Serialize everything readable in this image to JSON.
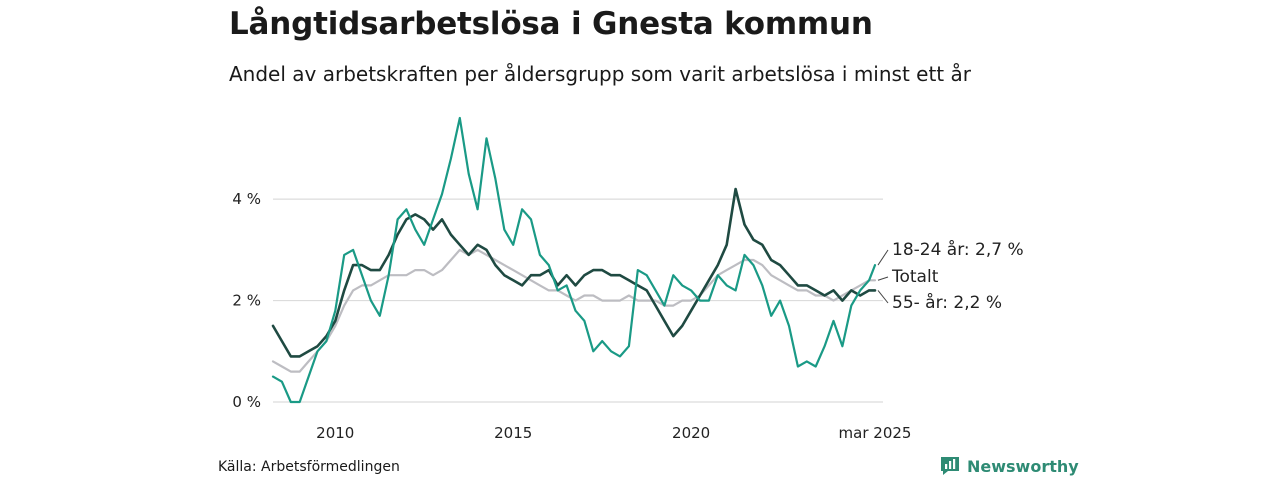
{
  "title": "Långtidsarbetslösa i Gnesta kommun",
  "subtitle": "Andel av arbetskraften per åldersgrupp som varit arbetslösa i minst ett år",
  "source": "Källa: Arbetsförmedlingen",
  "brand": "Newsworthy",
  "colors": {
    "youth": "#1a9a86",
    "senior": "#1f4a42",
    "total": "#bdbdc2",
    "grid": "#dcdcdc",
    "brand": "#2e8b74"
  },
  "chart_data": {
    "type": "line",
    "x_unit": "month",
    "x_range": [
      "2008-04",
      "2025-03"
    ],
    "ylim": [
      0,
      5.6
    ],
    "yticks": [
      {
        "value": 0,
        "label": "0 %"
      },
      {
        "value": 2,
        "label": "2 %"
      },
      {
        "value": 4,
        "label": "4 %"
      }
    ],
    "xticks": [
      {
        "date": "2010-01",
        "label": "2010"
      },
      {
        "date": "2015-01",
        "label": "2015"
      },
      {
        "date": "2020-01",
        "label": "2020"
      },
      {
        "date": "2025-03",
        "label": "mar 2025"
      }
    ],
    "grid": true,
    "legend": "direct-labels-right",
    "series": [
      {
        "key": "total",
        "label": "Totalt",
        "points": [
          [
            "2008-04",
            0.8
          ],
          [
            "2008-07",
            0.7
          ],
          [
            "2008-10",
            0.6
          ],
          [
            "2009-01",
            0.6
          ],
          [
            "2009-04",
            0.8
          ],
          [
            "2009-07",
            1.0
          ],
          [
            "2009-10",
            1.2
          ],
          [
            "2010-01",
            1.5
          ],
          [
            "2010-04",
            1.9
          ],
          [
            "2010-07",
            2.2
          ],
          [
            "2010-10",
            2.3
          ],
          [
            "2011-01",
            2.3
          ],
          [
            "2011-04",
            2.4
          ],
          [
            "2011-07",
            2.5
          ],
          [
            "2011-10",
            2.5
          ],
          [
            "2012-01",
            2.5
          ],
          [
            "2012-04",
            2.6
          ],
          [
            "2012-07",
            2.6
          ],
          [
            "2012-10",
            2.5
          ],
          [
            "2013-01",
            2.6
          ],
          [
            "2013-04",
            2.8
          ],
          [
            "2013-07",
            3.0
          ],
          [
            "2013-10",
            2.9
          ],
          [
            "2014-01",
            3.0
          ],
          [
            "2014-04",
            2.9
          ],
          [
            "2014-07",
            2.8
          ],
          [
            "2014-10",
            2.7
          ],
          [
            "2015-01",
            2.6
          ],
          [
            "2015-04",
            2.5
          ],
          [
            "2015-07",
            2.4
          ],
          [
            "2015-10",
            2.3
          ],
          [
            "2016-01",
            2.2
          ],
          [
            "2016-04",
            2.2
          ],
          [
            "2016-07",
            2.1
          ],
          [
            "2016-10",
            2.0
          ],
          [
            "2017-01",
            2.1
          ],
          [
            "2017-04",
            2.1
          ],
          [
            "2017-07",
            2.0
          ],
          [
            "2017-10",
            2.0
          ],
          [
            "2018-01",
            2.0
          ],
          [
            "2018-04",
            2.1
          ],
          [
            "2018-07",
            2.0
          ],
          [
            "2018-10",
            2.0
          ],
          [
            "2019-01",
            2.0
          ],
          [
            "2019-04",
            1.9
          ],
          [
            "2019-07",
            1.9
          ],
          [
            "2019-10",
            2.0
          ],
          [
            "2020-01",
            2.0
          ],
          [
            "2020-04",
            2.1
          ],
          [
            "2020-07",
            2.3
          ],
          [
            "2020-10",
            2.5
          ],
          [
            "2021-01",
            2.6
          ],
          [
            "2021-04",
            2.7
          ],
          [
            "2021-07",
            2.8
          ],
          [
            "2021-10",
            2.8
          ],
          [
            "2022-01",
            2.7
          ],
          [
            "2022-04",
            2.5
          ],
          [
            "2022-07",
            2.4
          ],
          [
            "2022-10",
            2.3
          ],
          [
            "2023-01",
            2.2
          ],
          [
            "2023-04",
            2.2
          ],
          [
            "2023-07",
            2.1
          ],
          [
            "2023-10",
            2.1
          ],
          [
            "2024-01",
            2.0
          ],
          [
            "2024-04",
            2.1
          ],
          [
            "2024-07",
            2.2
          ],
          [
            "2024-10",
            2.3
          ],
          [
            "2025-01",
            2.4
          ],
          [
            "2025-03",
            2.4
          ]
        ]
      },
      {
        "key": "senior",
        "label": "55- år: 2,2 %",
        "points": [
          [
            "2008-04",
            1.5
          ],
          [
            "2008-07",
            1.2
          ],
          [
            "2008-10",
            0.9
          ],
          [
            "2009-01",
            0.9
          ],
          [
            "2009-04",
            1.0
          ],
          [
            "2009-07",
            1.1
          ],
          [
            "2009-10",
            1.3
          ],
          [
            "2010-01",
            1.6
          ],
          [
            "2010-04",
            2.2
          ],
          [
            "2010-07",
            2.7
          ],
          [
            "2010-10",
            2.7
          ],
          [
            "2011-01",
            2.6
          ],
          [
            "2011-04",
            2.6
          ],
          [
            "2011-07",
            2.9
          ],
          [
            "2011-10",
            3.3
          ],
          [
            "2012-01",
            3.6
          ],
          [
            "2012-04",
            3.7
          ],
          [
            "2012-07",
            3.6
          ],
          [
            "2012-10",
            3.4
          ],
          [
            "2013-01",
            3.6
          ],
          [
            "2013-04",
            3.3
          ],
          [
            "2013-07",
            3.1
          ],
          [
            "2013-10",
            2.9
          ],
          [
            "2014-01",
            3.1
          ],
          [
            "2014-04",
            3.0
          ],
          [
            "2014-07",
            2.7
          ],
          [
            "2014-10",
            2.5
          ],
          [
            "2015-01",
            2.4
          ],
          [
            "2015-04",
            2.3
          ],
          [
            "2015-07",
            2.5
          ],
          [
            "2015-10",
            2.5
          ],
          [
            "2016-01",
            2.6
          ],
          [
            "2016-04",
            2.3
          ],
          [
            "2016-07",
            2.5
          ],
          [
            "2016-10",
            2.3
          ],
          [
            "2017-01",
            2.5
          ],
          [
            "2017-04",
            2.6
          ],
          [
            "2017-07",
            2.6
          ],
          [
            "2017-10",
            2.5
          ],
          [
            "2018-01",
            2.5
          ],
          [
            "2018-04",
            2.4
          ],
          [
            "2018-07",
            2.3
          ],
          [
            "2018-10",
            2.2
          ],
          [
            "2019-01",
            1.9
          ],
          [
            "2019-04",
            1.6
          ],
          [
            "2019-07",
            1.3
          ],
          [
            "2019-10",
            1.5
          ],
          [
            "2020-01",
            1.8
          ],
          [
            "2020-04",
            2.1
          ],
          [
            "2020-07",
            2.4
          ],
          [
            "2020-10",
            2.7
          ],
          [
            "2021-01",
            3.1
          ],
          [
            "2021-04",
            4.2
          ],
          [
            "2021-07",
            3.5
          ],
          [
            "2021-10",
            3.2
          ],
          [
            "2022-01",
            3.1
          ],
          [
            "2022-04",
            2.8
          ],
          [
            "2022-07",
            2.7
          ],
          [
            "2022-10",
            2.5
          ],
          [
            "2023-01",
            2.3
          ],
          [
            "2023-04",
            2.3
          ],
          [
            "2023-07",
            2.2
          ],
          [
            "2023-10",
            2.1
          ],
          [
            "2024-01",
            2.2
          ],
          [
            "2024-04",
            2.0
          ],
          [
            "2024-07",
            2.2
          ],
          [
            "2024-10",
            2.1
          ],
          [
            "2025-01",
            2.2
          ],
          [
            "2025-03",
            2.2
          ]
        ]
      },
      {
        "key": "youth",
        "label": "18-24 år: 2,7 %",
        "points": [
          [
            "2008-04",
            0.5
          ],
          [
            "2008-07",
            0.4
          ],
          [
            "2008-10",
            0.0
          ],
          [
            "2009-01",
            0.0
          ],
          [
            "2009-04",
            0.5
          ],
          [
            "2009-07",
            1.0
          ],
          [
            "2009-10",
            1.2
          ],
          [
            "2010-01",
            1.8
          ],
          [
            "2010-04",
            2.9
          ],
          [
            "2010-07",
            3.0
          ],
          [
            "2010-10",
            2.5
          ],
          [
            "2011-01",
            2.0
          ],
          [
            "2011-04",
            1.7
          ],
          [
            "2011-07",
            2.5
          ],
          [
            "2011-10",
            3.6
          ],
          [
            "2012-01",
            3.8
          ],
          [
            "2012-04",
            3.4
          ],
          [
            "2012-07",
            3.1
          ],
          [
            "2012-10",
            3.6
          ],
          [
            "2013-01",
            4.1
          ],
          [
            "2013-04",
            4.8
          ],
          [
            "2013-07",
            5.6
          ],
          [
            "2013-10",
            4.5
          ],
          [
            "2014-01",
            3.8
          ],
          [
            "2014-04",
            5.2
          ],
          [
            "2014-07",
            4.4
          ],
          [
            "2014-10",
            3.4
          ],
          [
            "2015-01",
            3.1
          ],
          [
            "2015-04",
            3.8
          ],
          [
            "2015-07",
            3.6
          ],
          [
            "2015-10",
            2.9
          ],
          [
            "2016-01",
            2.7
          ],
          [
            "2016-04",
            2.2
          ],
          [
            "2016-07",
            2.3
          ],
          [
            "2016-10",
            1.8
          ],
          [
            "2017-01",
            1.6
          ],
          [
            "2017-04",
            1.0
          ],
          [
            "2017-07",
            1.2
          ],
          [
            "2017-10",
            1.0
          ],
          [
            "2018-01",
            0.9
          ],
          [
            "2018-04",
            1.1
          ],
          [
            "2018-07",
            2.6
          ],
          [
            "2018-10",
            2.5
          ],
          [
            "2019-01",
            2.2
          ],
          [
            "2019-04",
            1.9
          ],
          [
            "2019-07",
            2.5
          ],
          [
            "2019-10",
            2.3
          ],
          [
            "2020-01",
            2.2
          ],
          [
            "2020-04",
            2.0
          ],
          [
            "2020-07",
            2.0
          ],
          [
            "2020-10",
            2.5
          ],
          [
            "2021-01",
            2.3
          ],
          [
            "2021-04",
            2.2
          ],
          [
            "2021-07",
            2.9
          ],
          [
            "2021-10",
            2.7
          ],
          [
            "2022-01",
            2.3
          ],
          [
            "2022-04",
            1.7
          ],
          [
            "2022-07",
            2.0
          ],
          [
            "2022-10",
            1.5
          ],
          [
            "2023-01",
            0.7
          ],
          [
            "2023-04",
            0.8
          ],
          [
            "2023-07",
            0.7
          ],
          [
            "2023-10",
            1.1
          ],
          [
            "2024-01",
            1.6
          ],
          [
            "2024-04",
            1.1
          ],
          [
            "2024-07",
            1.9
          ],
          [
            "2024-10",
            2.2
          ],
          [
            "2025-01",
            2.4
          ],
          [
            "2025-03",
            2.7
          ]
        ]
      }
    ]
  }
}
